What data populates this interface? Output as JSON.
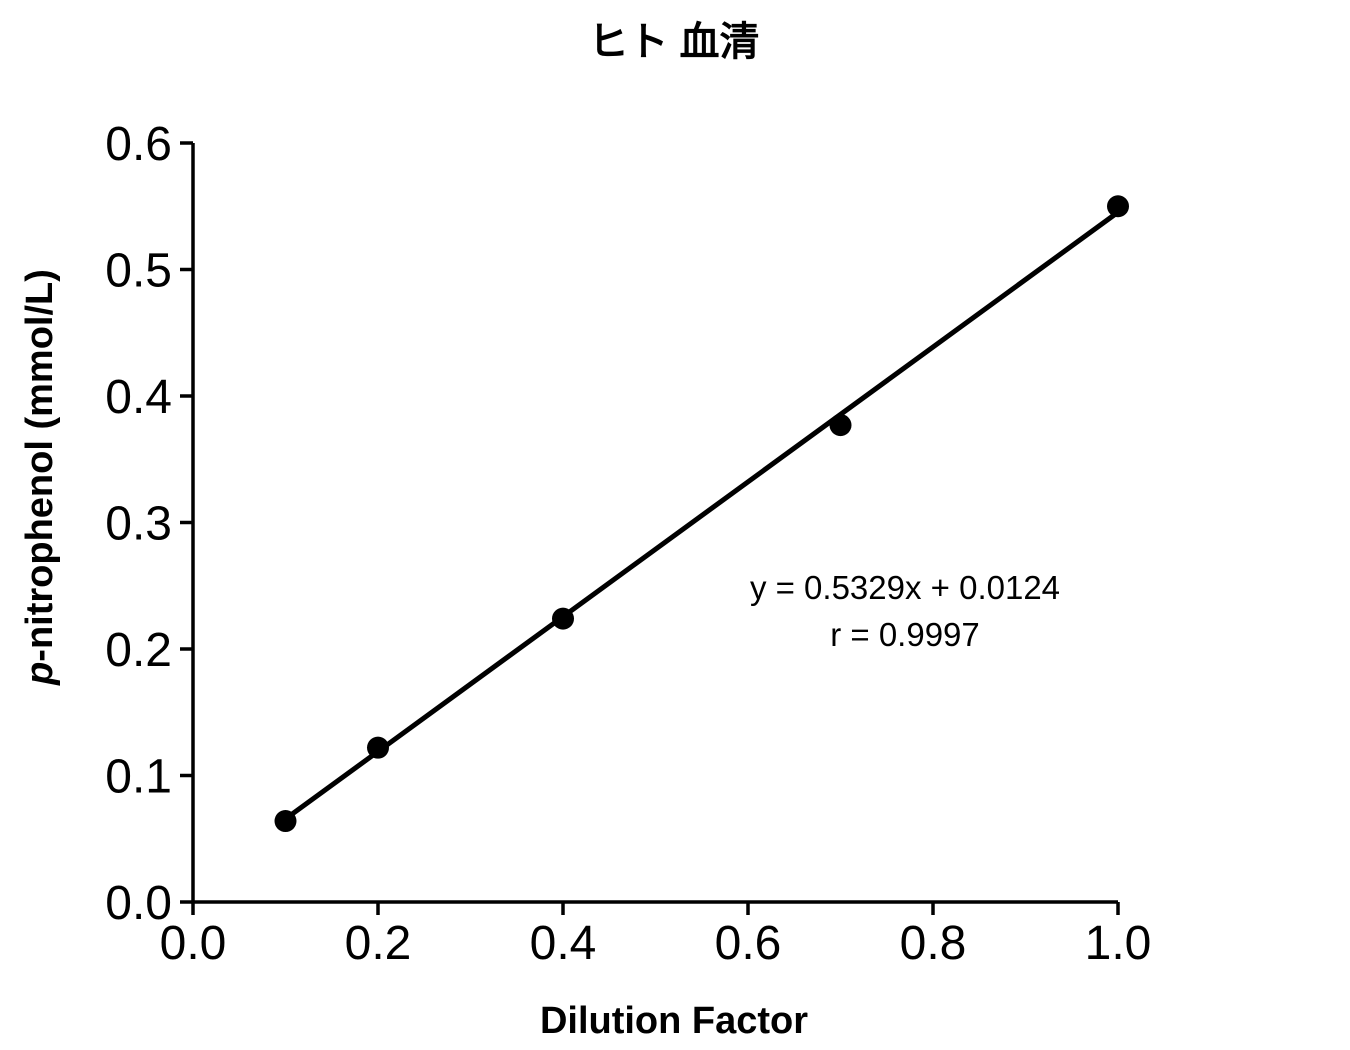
{
  "chart_data": {
    "type": "scatter",
    "title": "ヒト 血清",
    "xlabel": "Dilution Factor",
    "ylabel": "p-nitrophenol (mmol/L)",
    "ylabel_italic_prefix": "p",
    "ylabel_rest": "-nitrophenol (mmol/L)",
    "xlim": [
      0.0,
      1.0
    ],
    "ylim": [
      0.0,
      0.6
    ],
    "grid": false,
    "legend": "none",
    "x_ticks": [
      0.0,
      0.2,
      0.4,
      0.6,
      0.8,
      1.0
    ],
    "x_tick_labels": [
      "0.0",
      "0.2",
      "0.4",
      "0.6",
      "0.8",
      "1.0"
    ],
    "y_ticks": [
      0.0,
      0.1,
      0.2,
      0.3,
      0.4,
      0.5,
      0.6
    ],
    "y_tick_labels": [
      "0.0",
      "0.1",
      "0.2",
      "0.3",
      "0.4",
      "0.5",
      "0.6"
    ],
    "points": [
      {
        "x": 0.1,
        "y": 0.064
      },
      {
        "x": 0.2,
        "y": 0.122
      },
      {
        "x": 0.4,
        "y": 0.224
      },
      {
        "x": 0.7,
        "y": 0.377
      },
      {
        "x": 1.0,
        "y": 0.55
      }
    ],
    "fit": {
      "slope": 0.5329,
      "intercept": 0.0124,
      "x_start": 0.1,
      "x_end": 1.0,
      "equation_label": "y = 0.5329x + 0.0124",
      "r_label": "r = 0.9997"
    },
    "colors": {
      "foreground": "#000000",
      "background": "#ffffff"
    }
  }
}
